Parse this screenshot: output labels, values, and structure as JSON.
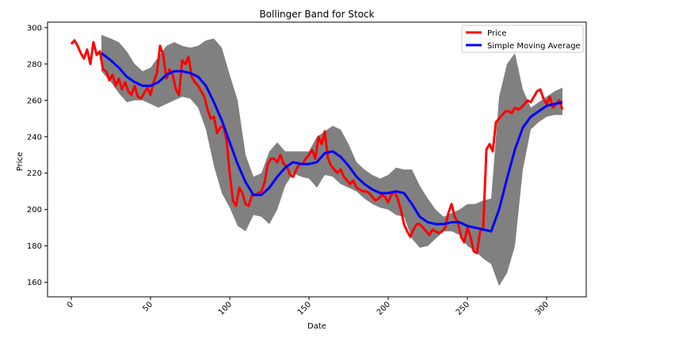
{
  "chart_data": {
    "type": "line",
    "title": "Bollinger Band for Stock",
    "xlabel": "Date",
    "ylabel": "Price",
    "xlim": [
      -15,
      325
    ],
    "ylim": [
      152,
      303
    ],
    "x_ticks": [
      0,
      50,
      100,
      150,
      200,
      250,
      300
    ],
    "y_ticks": [
      160,
      180,
      200,
      220,
      240,
      260,
      280,
      300
    ],
    "grid": false,
    "legend_position": "top-right",
    "legend": [
      "Price",
      "Simple Moving Average"
    ],
    "colors": {
      "price": "#ff0000",
      "sma": "#0000ff",
      "band": "#808080"
    },
    "series": [
      {
        "name": "Price",
        "x": [
          0,
          2,
          4,
          6,
          8,
          10,
          12,
          14,
          16,
          18,
          20,
          22,
          24,
          26,
          28,
          30,
          32,
          34,
          36,
          38,
          40,
          42,
          44,
          46,
          48,
          50,
          52,
          54,
          56,
          58,
          60,
          62,
          64,
          66,
          68,
          70,
          72,
          74,
          76,
          78,
          80,
          82,
          84,
          86,
          88,
          90,
          92,
          94,
          96,
          98,
          100,
          102,
          104,
          106,
          108,
          110,
          112,
          114,
          116,
          118,
          120,
          122,
          124,
          126,
          128,
          130,
          132,
          134,
          136,
          138,
          140,
          142,
          144,
          146,
          148,
          150,
          152,
          154,
          156,
          158,
          160,
          162,
          164,
          166,
          168,
          170,
          172,
          174,
          176,
          178,
          180,
          182,
          184,
          186,
          188,
          190,
          192,
          194,
          196,
          198,
          200,
          202,
          204,
          206,
          208,
          210,
          212,
          214,
          216,
          218,
          220,
          222,
          224,
          226,
          228,
          230,
          232,
          234,
          236,
          238,
          240,
          242,
          244,
          246,
          248,
          250,
          252,
          254,
          256,
          258,
          260,
          262,
          264,
          266,
          268,
          270,
          272,
          274,
          276,
          278,
          280,
          282,
          284,
          286,
          288,
          290,
          292,
          294,
          296,
          298,
          300,
          302,
          304,
          306,
          308,
          310
        ],
        "values": [
          291,
          293,
          290,
          286,
          283,
          288,
          280,
          292,
          285,
          287,
          277,
          276,
          271,
          274,
          268,
          272,
          266,
          270,
          265,
          263,
          268,
          262,
          261,
          264,
          267,
          263,
          270,
          275,
          290,
          285,
          272,
          277,
          274,
          266,
          263,
          282,
          280,
          284,
          273,
          270,
          268,
          265,
          262,
          255,
          250,
          251,
          242,
          245,
          246,
          238,
          220,
          205,
          202,
          212,
          209,
          203,
          202,
          208,
          208,
          209,
          210,
          215,
          225,
          228,
          228,
          226,
          230,
          225,
          224,
          219,
          218,
          222,
          225,
          225,
          228,
          230,
          233,
          228,
          240,
          236,
          243,
          228,
          224,
          222,
          220,
          222,
          218,
          216,
          214,
          216,
          212,
          211,
          210,
          210,
          209,
          207,
          205,
          206,
          208,
          207,
          204,
          208,
          210,
          206,
          200,
          192,
          188,
          185,
          189,
          192,
          192,
          190,
          188,
          186,
          189,
          188,
          187,
          188,
          190,
          198,
          203,
          196,
          193,
          185,
          182,
          190,
          185,
          177,
          176,
          188,
          190,
          233,
          236,
          232,
          248,
          250,
          252,
          254,
          254,
          253,
          256,
          255,
          256,
          258,
          260,
          259,
          262,
          265,
          266,
          261,
          258,
          262,
          256,
          258,
          260,
          255
        ]
      },
      {
        "name": "Simple Moving Average",
        "x": [
          19,
          25,
          30,
          35,
          40,
          45,
          50,
          55,
          60,
          65,
          70,
          75,
          80,
          85,
          90,
          95,
          100,
          105,
          110,
          115,
          120,
          125,
          130,
          135,
          140,
          145,
          150,
          155,
          160,
          165,
          170,
          175,
          180,
          185,
          190,
          195,
          200,
          205,
          210,
          215,
          220,
          225,
          230,
          235,
          240,
          245,
          250,
          255,
          260,
          265,
          270,
          275,
          280,
          285,
          290,
          295,
          300,
          305,
          310
        ],
        "values": [
          286,
          282,
          278,
          273,
          270,
          268,
          268,
          270,
          274,
          276,
          276,
          275,
          273,
          268,
          259,
          249,
          237,
          225,
          215,
          208,
          208,
          212,
          218,
          223,
          226,
          225,
          225,
          226,
          231,
          232,
          229,
          224,
          218,
          214,
          211,
          209,
          209,
          210,
          209,
          203,
          196,
          193,
          192,
          192,
          193,
          193,
          191,
          190,
          189,
          188,
          200,
          217,
          233,
          245,
          251,
          254,
          257,
          258,
          259
        ]
      },
      {
        "name": "Upper Band",
        "x": [
          19,
          25,
          30,
          35,
          40,
          45,
          50,
          55,
          60,
          65,
          70,
          75,
          80,
          85,
          90,
          95,
          100,
          105,
          110,
          115,
          120,
          125,
          130,
          135,
          140,
          145,
          150,
          155,
          160,
          165,
          170,
          175,
          180,
          185,
          190,
          195,
          200,
          205,
          210,
          215,
          220,
          225,
          230,
          235,
          240,
          245,
          250,
          255,
          260,
          265,
          270,
          275,
          280,
          285,
          290,
          295,
          300,
          305,
          310
        ],
        "values": [
          296,
          294,
          292,
          287,
          280,
          276,
          278,
          284,
          290,
          292,
          290,
          289,
          290,
          293,
          294,
          289,
          274,
          260,
          230,
          218,
          220,
          232,
          237,
          232,
          232,
          232,
          232,
          240,
          243,
          246,
          244,
          236,
          226,
          222,
          219,
          217,
          219,
          223,
          222,
          222,
          213,
          206,
          200,
          196,
          198,
          200,
          203,
          203,
          205,
          206,
          262,
          280,
          286,
          266,
          256,
          259,
          262,
          265,
          267
        ]
      },
      {
        "name": "Lower Band",
        "x": [
          19,
          25,
          30,
          35,
          40,
          45,
          50,
          55,
          60,
          65,
          70,
          75,
          80,
          85,
          90,
          95,
          100,
          105,
          110,
          115,
          120,
          125,
          130,
          135,
          140,
          145,
          150,
          155,
          160,
          165,
          170,
          175,
          180,
          185,
          190,
          195,
          200,
          205,
          210,
          215,
          220,
          225,
          230,
          235,
          240,
          245,
          250,
          255,
          260,
          265,
          270,
          275,
          280,
          285,
          290,
          295,
          300,
          305,
          310
        ],
        "values": [
          276,
          270,
          264,
          259,
          260,
          260,
          258,
          256,
          258,
          260,
          262,
          261,
          256,
          244,
          224,
          209,
          201,
          191,
          188,
          197,
          196,
          192,
          200,
          213,
          220,
          218,
          217,
          212,
          219,
          218,
          214,
          212,
          210,
          206,
          203,
          201,
          200,
          197,
          196,
          184,
          179,
          180,
          184,
          188,
          188,
          186,
          180,
          177,
          173,
          170,
          158,
          165,
          180,
          222,
          244,
          248,
          251,
          252,
          252
        ]
      }
    ]
  }
}
